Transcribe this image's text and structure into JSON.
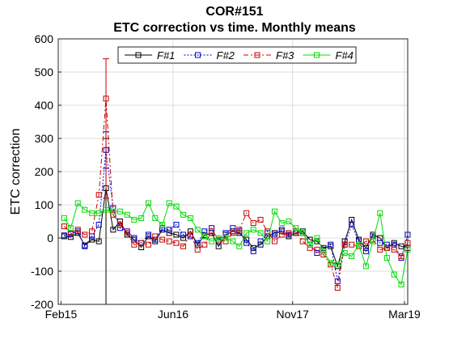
{
  "chart_data": {
    "type": "line",
    "title": "COR#151",
    "subtitle": "ETC correction vs time. Monthly means",
    "xlabel": "",
    "ylabel": "ETC correction",
    "ylim": [
      -200,
      600
    ],
    "yticks": [
      -200,
      -100,
      0,
      100,
      200,
      300,
      400,
      500,
      600
    ],
    "xlim": [
      "2015-01-20",
      "2019-03-15"
    ],
    "xticks": [
      {
        "label": "Feb15",
        "date": "2015-02-01"
      },
      {
        "label": "Jun16",
        "date": "2016-06-01"
      },
      {
        "label": "Nov17",
        "date": "2017-11-01"
      },
      {
        "label": "Mar19",
        "date": "2019-03-01"
      }
    ],
    "grid": true,
    "legend_position": "top",
    "series": [
      {
        "name": "F#1",
        "color": "#000000",
        "dash": "",
        "points": [
          [
            "2015-02",
            5
          ],
          [
            "2015-03",
            3
          ],
          [
            "2015-04",
            15
          ],
          [
            "2015-05",
            -22
          ],
          [
            "2015-06",
            -5
          ],
          [
            "2015-07",
            -10
          ],
          [
            "2015-08",
            150
          ],
          [
            "2015-09",
            25
          ],
          [
            "2015-10",
            50
          ],
          [
            "2015-11",
            10
          ],
          [
            "2015-12",
            -5
          ],
          [
            "2016-01",
            -28
          ],
          [
            "2016-02",
            5
          ],
          [
            "2016-03",
            -10
          ],
          [
            "2016-04",
            25
          ],
          [
            "2016-05",
            15
          ],
          [
            "2016-06",
            10
          ],
          [
            "2016-07",
            0
          ],
          [
            "2016-08",
            20
          ],
          [
            "2016-09",
            -20
          ],
          [
            "2016-10",
            8
          ],
          [
            "2016-11",
            15
          ],
          [
            "2016-12",
            -25
          ],
          [
            "2017-01",
            10
          ],
          [
            "2017-02",
            20
          ],
          [
            "2017-03",
            15
          ],
          [
            "2017-04",
            -5
          ],
          [
            "2017-05",
            -30
          ],
          [
            "2017-06",
            -20
          ],
          [
            "2017-07",
            5
          ],
          [
            "2017-08",
            15
          ],
          [
            "2017-09",
            20
          ],
          [
            "2017-10",
            5
          ],
          [
            "2017-11",
            15
          ],
          [
            "2017-12",
            20
          ],
          [
            "2018-01",
            -5
          ],
          [
            "2018-02",
            -10
          ],
          [
            "2018-03",
            -30
          ],
          [
            "2018-04",
            -25
          ],
          [
            "2018-05",
            -85
          ],
          [
            "2018-06",
            -10
          ],
          [
            "2018-07",
            55
          ],
          [
            "2018-08",
            -5
          ],
          [
            "2018-09",
            -30
          ],
          [
            "2018-10",
            10
          ],
          [
            "2018-11",
            0
          ],
          [
            "2018-12",
            -30
          ],
          [
            "2019-01",
            -15
          ],
          [
            "2019-02",
            -25
          ],
          [
            "2019-03",
            -30
          ]
        ],
        "error_bars": [
          [
            "2015-08",
            150,
            -200,
            300
          ]
        ]
      },
      {
        "name": "F#2",
        "color": "#0000cc",
        "dash": "2,2",
        "points": [
          [
            "2015-02",
            8
          ],
          [
            "2015-03",
            12
          ],
          [
            "2015-04",
            20
          ],
          [
            "2015-05",
            -25
          ],
          [
            "2015-06",
            5
          ],
          [
            "2015-07",
            40
          ],
          [
            "2015-08",
            265
          ],
          [
            "2015-09",
            90
          ],
          [
            "2015-10",
            30
          ],
          [
            "2015-11",
            20
          ],
          [
            "2015-12",
            0
          ],
          [
            "2016-01",
            -15
          ],
          [
            "2016-02",
            10
          ],
          [
            "2016-03",
            -5
          ],
          [
            "2016-04",
            30
          ],
          [
            "2016-05",
            25
          ],
          [
            "2016-06",
            40
          ],
          [
            "2016-07",
            10
          ],
          [
            "2016-08",
            5
          ],
          [
            "2016-09",
            -15
          ],
          [
            "2016-10",
            20
          ],
          [
            "2016-11",
            30
          ],
          [
            "2016-12",
            -10
          ],
          [
            "2017-01",
            15
          ],
          [
            "2017-02",
            30
          ],
          [
            "2017-03",
            20
          ],
          [
            "2017-04",
            -15
          ],
          [
            "2017-05",
            -40
          ],
          [
            "2017-06",
            -10
          ],
          [
            "2017-07",
            15
          ],
          [
            "2017-08",
            10
          ],
          [
            "2017-09",
            25
          ],
          [
            "2017-10",
            10
          ],
          [
            "2017-11",
            20
          ],
          [
            "2017-12",
            15
          ],
          [
            "2018-01",
            -20
          ],
          [
            "2018-02",
            -45
          ],
          [
            "2018-03",
            -35
          ],
          [
            "2018-04",
            -20
          ],
          [
            "2018-05",
            -130
          ],
          [
            "2018-06",
            -20
          ],
          [
            "2018-07",
            40
          ],
          [
            "2018-08",
            -10
          ],
          [
            "2018-09",
            -40
          ],
          [
            "2018-10",
            5
          ],
          [
            "2018-11",
            -15
          ],
          [
            "2018-12",
            -20
          ],
          [
            "2019-01",
            -20
          ],
          [
            "2019-02",
            -60
          ],
          [
            "2019-03",
            10
          ]
        ],
        "error_bars": [
          [
            "2015-08",
            265,
            210,
            320
          ]
        ]
      },
      {
        "name": "F#3",
        "color": "#cc0000",
        "dash": "6,3,2,3",
        "points": [
          [
            "2015-02",
            35
          ],
          [
            "2015-03",
            15
          ],
          [
            "2015-04",
            25
          ],
          [
            "2015-05",
            10
          ],
          [
            "2015-06",
            20
          ],
          [
            "2015-07",
            130
          ],
          [
            "2015-08",
            420
          ],
          [
            "2015-09",
            70
          ],
          [
            "2015-10",
            40
          ],
          [
            "2015-11",
            15
          ],
          [
            "2015-12",
            -20
          ],
          [
            "2016-01",
            -15
          ],
          [
            "2016-02",
            -20
          ],
          [
            "2016-03",
            5
          ],
          [
            "2016-04",
            -5
          ],
          [
            "2016-05",
            -10
          ],
          [
            "2016-06",
            -15
          ],
          [
            "2016-07",
            -25
          ],
          [
            "2016-08",
            10
          ],
          [
            "2016-09",
            -35
          ],
          [
            "2016-10",
            -20
          ],
          [
            "2016-11",
            20
          ],
          [
            "2016-12",
            -5
          ],
          [
            "2017-01",
            -10
          ],
          [
            "2017-02",
            15
          ],
          [
            "2017-03",
            25
          ],
          [
            "2017-04",
            75
          ],
          [
            "2017-05",
            45
          ],
          [
            "2017-06",
            55
          ],
          [
            "2017-07",
            20
          ],
          [
            "2017-08",
            -10
          ],
          [
            "2017-09",
            10
          ],
          [
            "2017-10",
            15
          ],
          [
            "2017-11",
            20
          ],
          [
            "2017-12",
            -10
          ],
          [
            "2018-01",
            -30
          ],
          [
            "2018-02",
            -35
          ],
          [
            "2018-03",
            -50
          ],
          [
            "2018-04",
            -80
          ],
          [
            "2018-05",
            -150
          ],
          [
            "2018-06",
            -20
          ],
          [
            "2018-07",
            -20
          ],
          [
            "2018-08",
            -25
          ],
          [
            "2018-09",
            -10
          ],
          [
            "2018-10",
            -5
          ],
          [
            "2018-11",
            -35
          ],
          [
            "2018-12",
            -30
          ],
          [
            "2019-01",
            -35
          ],
          [
            "2019-02",
            -55
          ],
          [
            "2019-03",
            -15
          ]
        ],
        "error_bars": [
          [
            "2015-08",
            420,
            120,
            540
          ]
        ]
      },
      {
        "name": "F#4",
        "color": "#00dd00",
        "dash": "",
        "points": [
          [
            "2015-02",
            60
          ],
          [
            "2015-03",
            30
          ],
          [
            "2015-04",
            105
          ],
          [
            "2015-05",
            85
          ],
          [
            "2015-06",
            75
          ],
          [
            "2015-07",
            75
          ],
          [
            "2015-08",
            85
          ],
          [
            "2015-09",
            80
          ],
          [
            "2015-10",
            80
          ],
          [
            "2015-11",
            70
          ],
          [
            "2015-12",
            55
          ],
          [
            "2016-01",
            60
          ],
          [
            "2016-02",
            105
          ],
          [
            "2016-03",
            60
          ],
          [
            "2016-04",
            40
          ],
          [
            "2016-05",
            105
          ],
          [
            "2016-06",
            95
          ],
          [
            "2016-07",
            70
          ],
          [
            "2016-08",
            60
          ],
          [
            "2016-09",
            25
          ],
          [
            "2016-10",
            5
          ],
          [
            "2016-11",
            -10
          ],
          [
            "2016-12",
            0
          ],
          [
            "2017-01",
            0
          ],
          [
            "2017-02",
            -10
          ],
          [
            "2017-03",
            -25
          ],
          [
            "2017-04",
            15
          ],
          [
            "2017-05",
            25
          ],
          [
            "2017-06",
            15
          ],
          [
            "2017-07",
            -10
          ],
          [
            "2017-08",
            80
          ],
          [
            "2017-09",
            45
          ],
          [
            "2017-10",
            50
          ],
          [
            "2017-11",
            30
          ],
          [
            "2017-12",
            15
          ],
          [
            "2018-01",
            -20
          ],
          [
            "2018-02",
            0
          ],
          [
            "2018-03",
            -40
          ],
          [
            "2018-04",
            -75
          ],
          [
            "2018-05",
            -80
          ],
          [
            "2018-06",
            -45
          ],
          [
            "2018-07",
            -55
          ],
          [
            "2018-08",
            -20
          ],
          [
            "2018-09",
            -85
          ],
          [
            "2018-10",
            -10
          ],
          [
            "2018-11",
            75
          ],
          [
            "2018-12",
            -60
          ],
          [
            "2019-01",
            -110
          ],
          [
            "2019-02",
            -140
          ],
          [
            "2019-03",
            -35
          ]
        ],
        "error_bars": []
      }
    ]
  }
}
